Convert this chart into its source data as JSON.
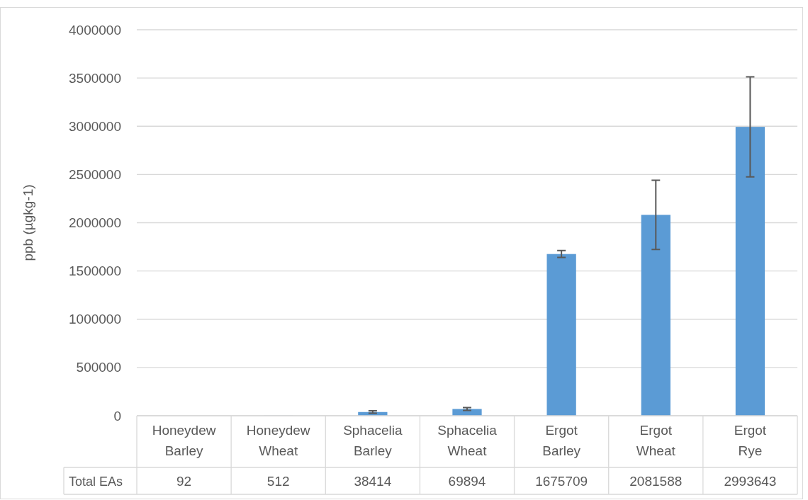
{
  "chart_data": {
    "type": "bar",
    "ylabel": "ppb (µgkg-1)",
    "categories": [
      "Honeydew Barley",
      "Honeydew Wheat",
      "Sphacelia Barley",
      "Sphacelia Wheat",
      "Ergot Barley",
      "Ergot Wheat",
      "Ergot Rye"
    ],
    "series": [
      {
        "name": "Total EAs",
        "color": "#5b9bd5",
        "values": [
          92,
          512,
          38414,
          69894,
          1675709,
          2081588,
          2993643
        ],
        "errors": [
          null,
          null,
          13000,
          15000,
          36000,
          358000,
          518000
        ]
      }
    ],
    "ylim": [
      0,
      4000000
    ],
    "yticks": [
      0,
      500000,
      1000000,
      1500000,
      2000000,
      2500000,
      3000000,
      3500000,
      4000000
    ],
    "grid": "y",
    "data_labels": true
  }
}
